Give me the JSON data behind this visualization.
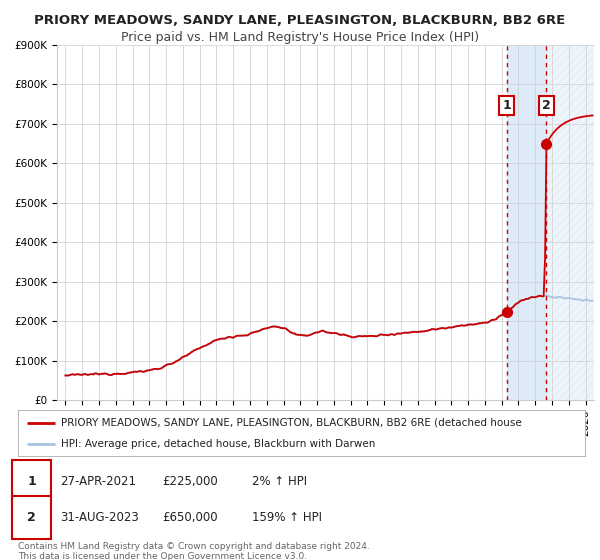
{
  "title": "PRIORY MEADOWS, SANDY LANE, PLEASINGTON, BLACKBURN, BB2 6RE",
  "subtitle": "Price paid vs. HM Land Registry's House Price Index (HPI)",
  "ylim": [
    0,
    900000
  ],
  "yticks": [
    0,
    100000,
    200000,
    300000,
    400000,
    500000,
    600000,
    700000,
    800000,
    900000
  ],
  "ytick_labels": [
    "£0",
    "£100K",
    "£200K",
    "£300K",
    "£400K",
    "£500K",
    "£600K",
    "£700K",
    "£800K",
    "£900K"
  ],
  "xlim_start": 1994.5,
  "xlim_end": 2026.5,
  "hpi_color": "#a8c4e0",
  "price_color": "#cc0000",
  "bg_color": "#ffffff",
  "shade_color": "#ddeaf7",
  "hatch_color": "#c8d8eb",
  "grid_color": "#cccccc",
  "marker1_x": 2021.31,
  "marker2_x": 2023.66,
  "marker1_price": 225000,
  "marker2_price": 650000,
  "legend_label1": "PRIORY MEADOWS, SANDY LANE, PLEASINGTON, BLACKBURN, BB2 6RE (detached house",
  "legend_label2": "HPI: Average price, detached house, Blackburn with Darwen",
  "table_row1": [
    "1",
    "27-APR-2021",
    "£225,000",
    "2% ↑ HPI"
  ],
  "table_row2": [
    "2",
    "31-AUG-2023",
    "£650,000",
    "159% ↑ HPI"
  ],
  "footer_text": "Contains HM Land Registry data © Crown copyright and database right 2024.\nThis data is licensed under the Open Government Licence v3.0.",
  "title_fontsize": 9.5,
  "subtitle_fontsize": 9,
  "tick_fontsize": 7.5,
  "legend_fontsize": 7.5,
  "table_fontsize": 8.5,
  "footer_fontsize": 6.5
}
